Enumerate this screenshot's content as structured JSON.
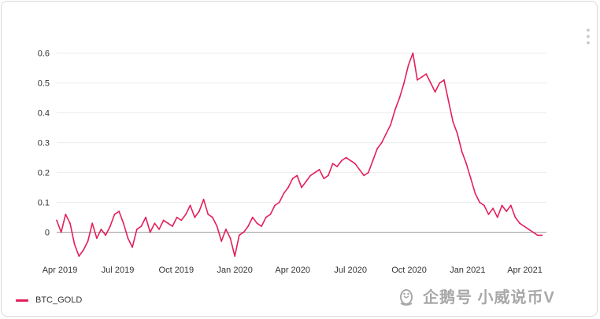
{
  "colors": {
    "series": "#e31f5b",
    "grid": "#ececec",
    "zero_line": "#999999",
    "text": "#333333"
  },
  "legend": {
    "label": "BTC_GOLD",
    "icon": "line-swatch"
  },
  "watermark": {
    "text": "企鹅号 小威说币V",
    "logo_icon": "penguin-logo-icon"
  },
  "chart_data": {
    "type": "line",
    "title": "",
    "xlabel": "",
    "ylabel": "",
    "ylim": [
      -0.08,
      0.62
    ],
    "yticks": [
      0,
      0.1,
      0.2,
      0.3,
      0.4,
      0.5,
      0.6
    ],
    "ytick_labels": [
      "0",
      "0.1",
      "0.2",
      "0.3",
      "0.4",
      "0.5",
      "0.6"
    ],
    "xlim": [
      "2019-03-27",
      "2021-05-05"
    ],
    "xticks": [
      "2019-04-01",
      "2019-07-01",
      "2019-10-01",
      "2020-01-01",
      "2020-04-01",
      "2020-07-01",
      "2020-10-01",
      "2021-01-01",
      "2021-04-01"
    ],
    "xtick_labels": [
      "Apr 2019",
      "Jul 2019",
      "Oct 2019",
      "Jan 2020",
      "Apr 2020",
      "Jul 2020",
      "Oct 2020",
      "Jan 2021",
      "Apr 2021"
    ],
    "grid": true,
    "legend_position": "bottom-left",
    "series": [
      {
        "name": "BTC_GOLD",
        "x": [
          "2019-03-27",
          "2019-04-03",
          "2019-04-10",
          "2019-04-17",
          "2019-04-24",
          "2019-05-01",
          "2019-05-08",
          "2019-05-15",
          "2019-05-22",
          "2019-05-29",
          "2019-06-05",
          "2019-06-12",
          "2019-06-19",
          "2019-06-26",
          "2019-07-03",
          "2019-07-10",
          "2019-07-17",
          "2019-07-24",
          "2019-07-31",
          "2019-08-07",
          "2019-08-14",
          "2019-08-21",
          "2019-08-28",
          "2019-09-04",
          "2019-09-11",
          "2019-09-18",
          "2019-09-25",
          "2019-10-02",
          "2019-10-09",
          "2019-10-16",
          "2019-10-23",
          "2019-10-30",
          "2019-11-06",
          "2019-11-13",
          "2019-11-20",
          "2019-11-27",
          "2019-12-04",
          "2019-12-11",
          "2019-12-18",
          "2019-12-25",
          "2020-01-01",
          "2020-01-08",
          "2020-01-15",
          "2020-01-22",
          "2020-01-29",
          "2020-02-05",
          "2020-02-12",
          "2020-02-19",
          "2020-02-26",
          "2020-03-04",
          "2020-03-11",
          "2020-03-18",
          "2020-03-25",
          "2020-04-01",
          "2020-04-08",
          "2020-04-15",
          "2020-04-22",
          "2020-04-29",
          "2020-05-06",
          "2020-05-13",
          "2020-05-20",
          "2020-05-27",
          "2020-06-03",
          "2020-06-10",
          "2020-06-17",
          "2020-06-24",
          "2020-07-01",
          "2020-07-08",
          "2020-07-15",
          "2020-07-22",
          "2020-07-29",
          "2020-08-05",
          "2020-08-12",
          "2020-08-19",
          "2020-08-26",
          "2020-09-02",
          "2020-09-09",
          "2020-09-16",
          "2020-09-23",
          "2020-09-30",
          "2020-10-07",
          "2020-10-14",
          "2020-10-21",
          "2020-10-28",
          "2020-11-04",
          "2020-11-11",
          "2020-11-18",
          "2020-11-25",
          "2020-12-02",
          "2020-12-09",
          "2020-12-16",
          "2020-12-23",
          "2020-12-30",
          "2021-01-06",
          "2021-01-13",
          "2021-01-20",
          "2021-01-27",
          "2021-02-03",
          "2021-02-10",
          "2021-02-17",
          "2021-02-24",
          "2021-03-03",
          "2021-03-10",
          "2021-03-17",
          "2021-03-24",
          "2021-03-31",
          "2021-04-07",
          "2021-04-14",
          "2021-04-21",
          "2021-04-28"
        ],
        "values": [
          0.04,
          0.0,
          0.06,
          0.03,
          -0.04,
          -0.08,
          -0.06,
          -0.03,
          0.03,
          -0.02,
          0.01,
          -0.01,
          0.02,
          0.06,
          0.07,
          0.03,
          -0.02,
          -0.05,
          0.01,
          0.02,
          0.05,
          0.0,
          0.03,
          0.01,
          0.04,
          0.03,
          0.02,
          0.05,
          0.04,
          0.06,
          0.09,
          0.05,
          0.07,
          0.11,
          0.06,
          0.05,
          0.02,
          -0.03,
          0.01,
          -0.02,
          -0.08,
          -0.01,
          0.0,
          0.02,
          0.05,
          0.03,
          0.02,
          0.05,
          0.06,
          0.09,
          0.1,
          0.13,
          0.15,
          0.18,
          0.19,
          0.15,
          0.17,
          0.19,
          0.2,
          0.21,
          0.18,
          0.19,
          0.23,
          0.22,
          0.24,
          0.25,
          0.24,
          0.23,
          0.21,
          0.19,
          0.2,
          0.24,
          0.28,
          0.3,
          0.33,
          0.36,
          0.41,
          0.45,
          0.5,
          0.56,
          0.6,
          0.51,
          0.52,
          0.53,
          0.5,
          0.47,
          0.5,
          0.51,
          0.44,
          0.37,
          0.33,
          0.27,
          0.23,
          0.18,
          0.13,
          0.1,
          0.09,
          0.06,
          0.08,
          0.05,
          0.09,
          0.07,
          0.09,
          0.05,
          0.03,
          0.02,
          0.01,
          0.0,
          -0.01,
          -0.01
        ]
      }
    ]
  }
}
